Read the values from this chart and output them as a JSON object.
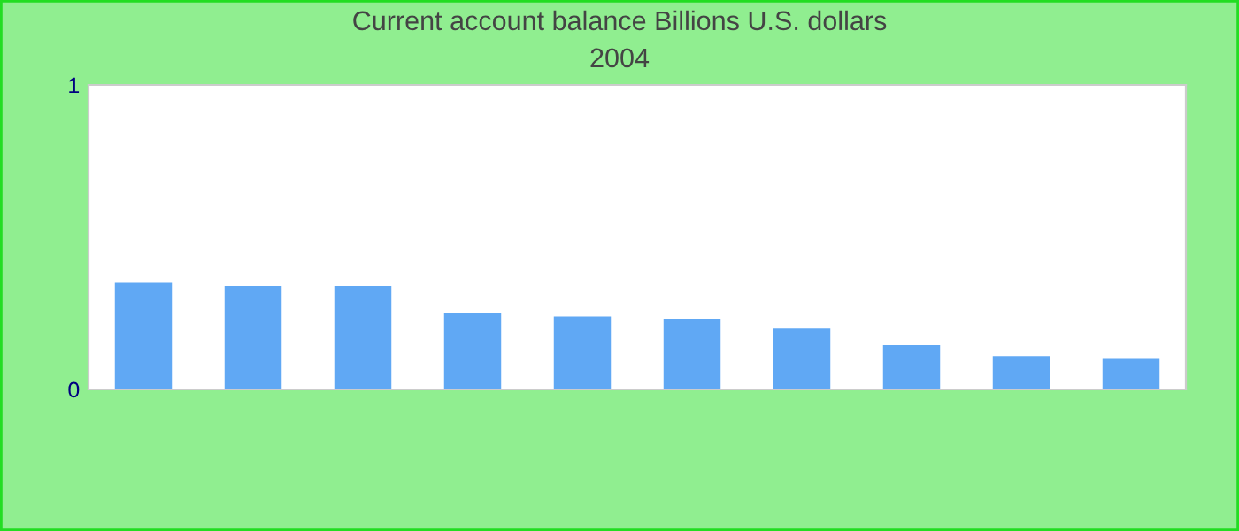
{
  "chart_data": {
    "type": "bar",
    "title": "Current account balance Billions U.S. dollars",
    "subtitle": "2004",
    "categories": [
      null,
      null,
      null,
      null,
      null,
      null,
      null,
      null,
      null,
      null
    ],
    "values": [
      0.35,
      0.34,
      0.34,
      0.25,
      0.24,
      0.23,
      0.2,
      0.145,
      0.11,
      0.1
    ],
    "color": "#60a8f4",
    "ylim": [
      0,
      1
    ],
    "yticks": [
      0,
      1
    ],
    "grid": false
  }
}
